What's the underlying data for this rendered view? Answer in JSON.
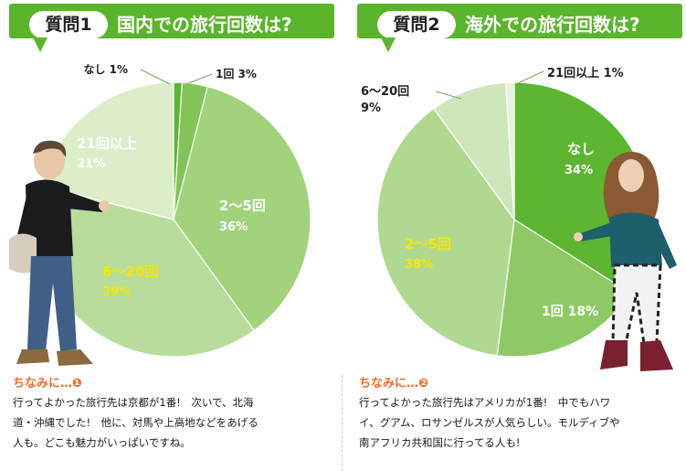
{
  "questions": [
    {
      "badge": "質問1",
      "title": "国内での旅行回数は?"
    },
    {
      "badge": "質問2",
      "title": "海外での旅行回数は?"
    }
  ],
  "chart_data": [
    {
      "type": "pie",
      "title": "国内での旅行回数は?",
      "slices": [
        {
          "label": "なし",
          "value": 1,
          "color": "#5db531"
        },
        {
          "label": "1回",
          "value": 3,
          "color": "#82c457"
        },
        {
          "label": "2〜5回",
          "value": 36,
          "color": "#a3d27c"
        },
        {
          "label": "6〜20回",
          "value": 39,
          "color": "#b8dc9b"
        },
        {
          "label": "21回以上",
          "value": 21,
          "color": "#dbedc9"
        }
      ],
      "display_labels": [
        "なし 1%",
        "1回 3%",
        "2〜5回",
        "36%",
        "6〜20回",
        "39%",
        "21回以上",
        "21%"
      ]
    },
    {
      "type": "pie",
      "title": "海外での旅行回数は?",
      "slices": [
        {
          "label": "なし",
          "value": 34,
          "color": "#5db531"
        },
        {
          "label": "1回",
          "value": 18,
          "color": "#8fc965"
        },
        {
          "label": "2〜5回",
          "value": 38,
          "color": "#b0d890"
        },
        {
          "label": "6〜20回",
          "value": 9,
          "color": "#cfe6bb"
        },
        {
          "label": "21回以上",
          "value": 1,
          "color": "#e7f3dc"
        }
      ],
      "display_labels": [
        "なし",
        "34%",
        "1回 18%",
        "2〜5回",
        "38%",
        "6〜20回",
        "9%",
        "21回以上 1%"
      ]
    }
  ],
  "notes": [
    {
      "heading": "ちなみに…❶",
      "lines": [
        "行ってよかった旅行先は京都が1番!　次いで、北海",
        "道・沖縄でした!　他に、対馬や上高地などをあげる",
        "人も。どこも魅力がいっぱいですね。"
      ]
    },
    {
      "heading": "ちなみに…❷",
      "lines": [
        "行ってよかった旅行先はアメリカが1番!　中でもハワ",
        "イ、グアム、ロサンゼルスが人気らしい。モルディブや",
        "南アフリカ共和国に行ってる人も!"
      ]
    }
  ]
}
